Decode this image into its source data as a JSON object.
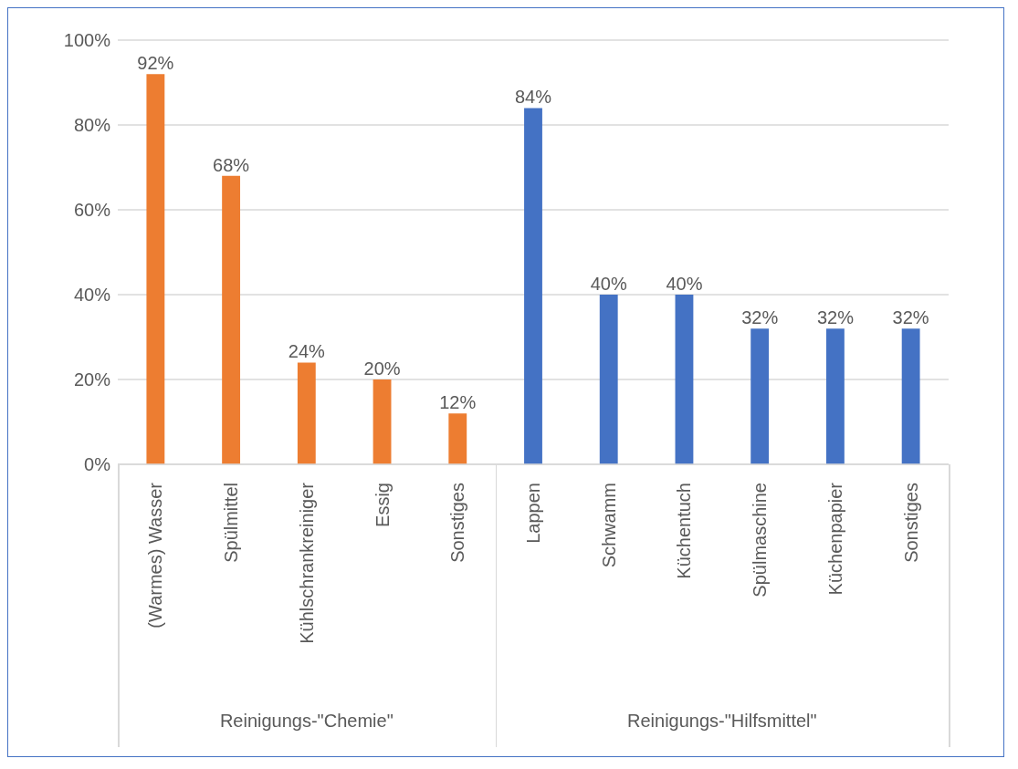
{
  "chart_data": {
    "type": "bar",
    "categories": [
      "(Warmes) Wasser",
      "Spülmittel",
      "Kühlschrankreiniger",
      "Essig",
      "Sonstiges",
      "Lappen",
      "Schwamm",
      "Küchentuch",
      "Spülmaschine",
      "Küchenpapier",
      "Sonstiges"
    ],
    "series": [
      {
        "color": "#ed7d31",
        "values": [
          92,
          68,
          24,
          20,
          12,
          null,
          null,
          null,
          null,
          null,
          null
        ],
        "value_labels": [
          "92%",
          "68%",
          "24%",
          "20%",
          "12%",
          null,
          null,
          null,
          null,
          null,
          null
        ]
      },
      {
        "color": "#4472c4",
        "values": [
          null,
          null,
          null,
          null,
          null,
          84,
          40,
          40,
          32,
          32,
          32
        ],
        "value_labels": [
          null,
          null,
          null,
          null,
          null,
          "84%",
          "40%",
          "40%",
          "32%",
          "32%",
          "32%"
        ]
      }
    ],
    "annotations": [
      "Reinigungs-\"Chemie\"",
      "Reinigungs-\"Hilfsmittel\""
    ],
    "ylim": [
      0,
      100
    ],
    "yticks": [
      {
        "value": 0,
        "label": "0%"
      },
      {
        "value": 20,
        "label": "20%"
      },
      {
        "value": 40,
        "label": "40%"
      },
      {
        "value": 60,
        "label": "60%"
      },
      {
        "value": 80,
        "label": "80%"
      },
      {
        "value": 100,
        "label": "100%"
      }
    ],
    "grid": "y"
  }
}
